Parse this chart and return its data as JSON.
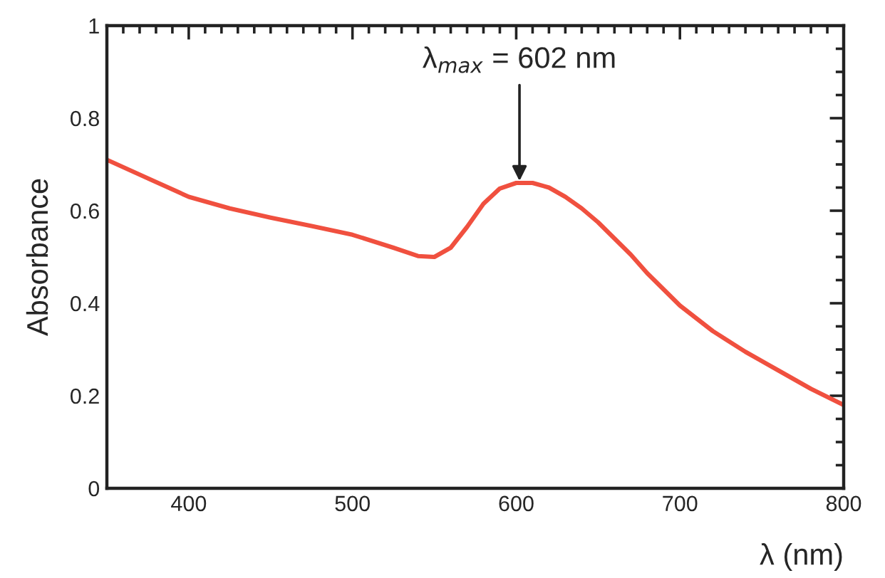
{
  "chart_data": {
    "type": "line",
    "xlabel": "λ (nm)",
    "ylabel": "Absorbance",
    "x": [
      350,
      375,
      400,
      425,
      450,
      475,
      500,
      525,
      540,
      550,
      560,
      570,
      580,
      590,
      600,
      610,
      620,
      630,
      640,
      650,
      660,
      670,
      680,
      690,
      700,
      720,
      740,
      760,
      780,
      800
    ],
    "series": [
      {
        "color": "#f0503f",
        "values": [
          0.71,
          0.67,
          0.63,
          0.605,
          0.585,
          0.567,
          0.548,
          0.52,
          0.502,
          0.5,
          0.52,
          0.565,
          0.615,
          0.648,
          0.66,
          0.66,
          0.65,
          0.63,
          0.605,
          0.575,
          0.54,
          0.505,
          0.465,
          0.43,
          0.395,
          0.34,
          0.295,
          0.255,
          0.215,
          0.18
        ]
      }
    ],
    "xlim": [
      350,
      800
    ],
    "xticks": [
      {
        "value": 350,
        "label": null
      },
      400,
      500,
      600,
      700,
      800
    ],
    "ylim": [
      0,
      1
    ],
    "yticks": [
      0,
      0.2,
      0.4,
      0.6,
      0.8,
      1
    ],
    "annotations": [
      {
        "text": "λ$_{max}$ = 602 nm",
        "x": 602,
        "y": 0.66
      }
    ],
    "grid": false,
    "marker": "none",
    "line_style": "solid"
  }
}
